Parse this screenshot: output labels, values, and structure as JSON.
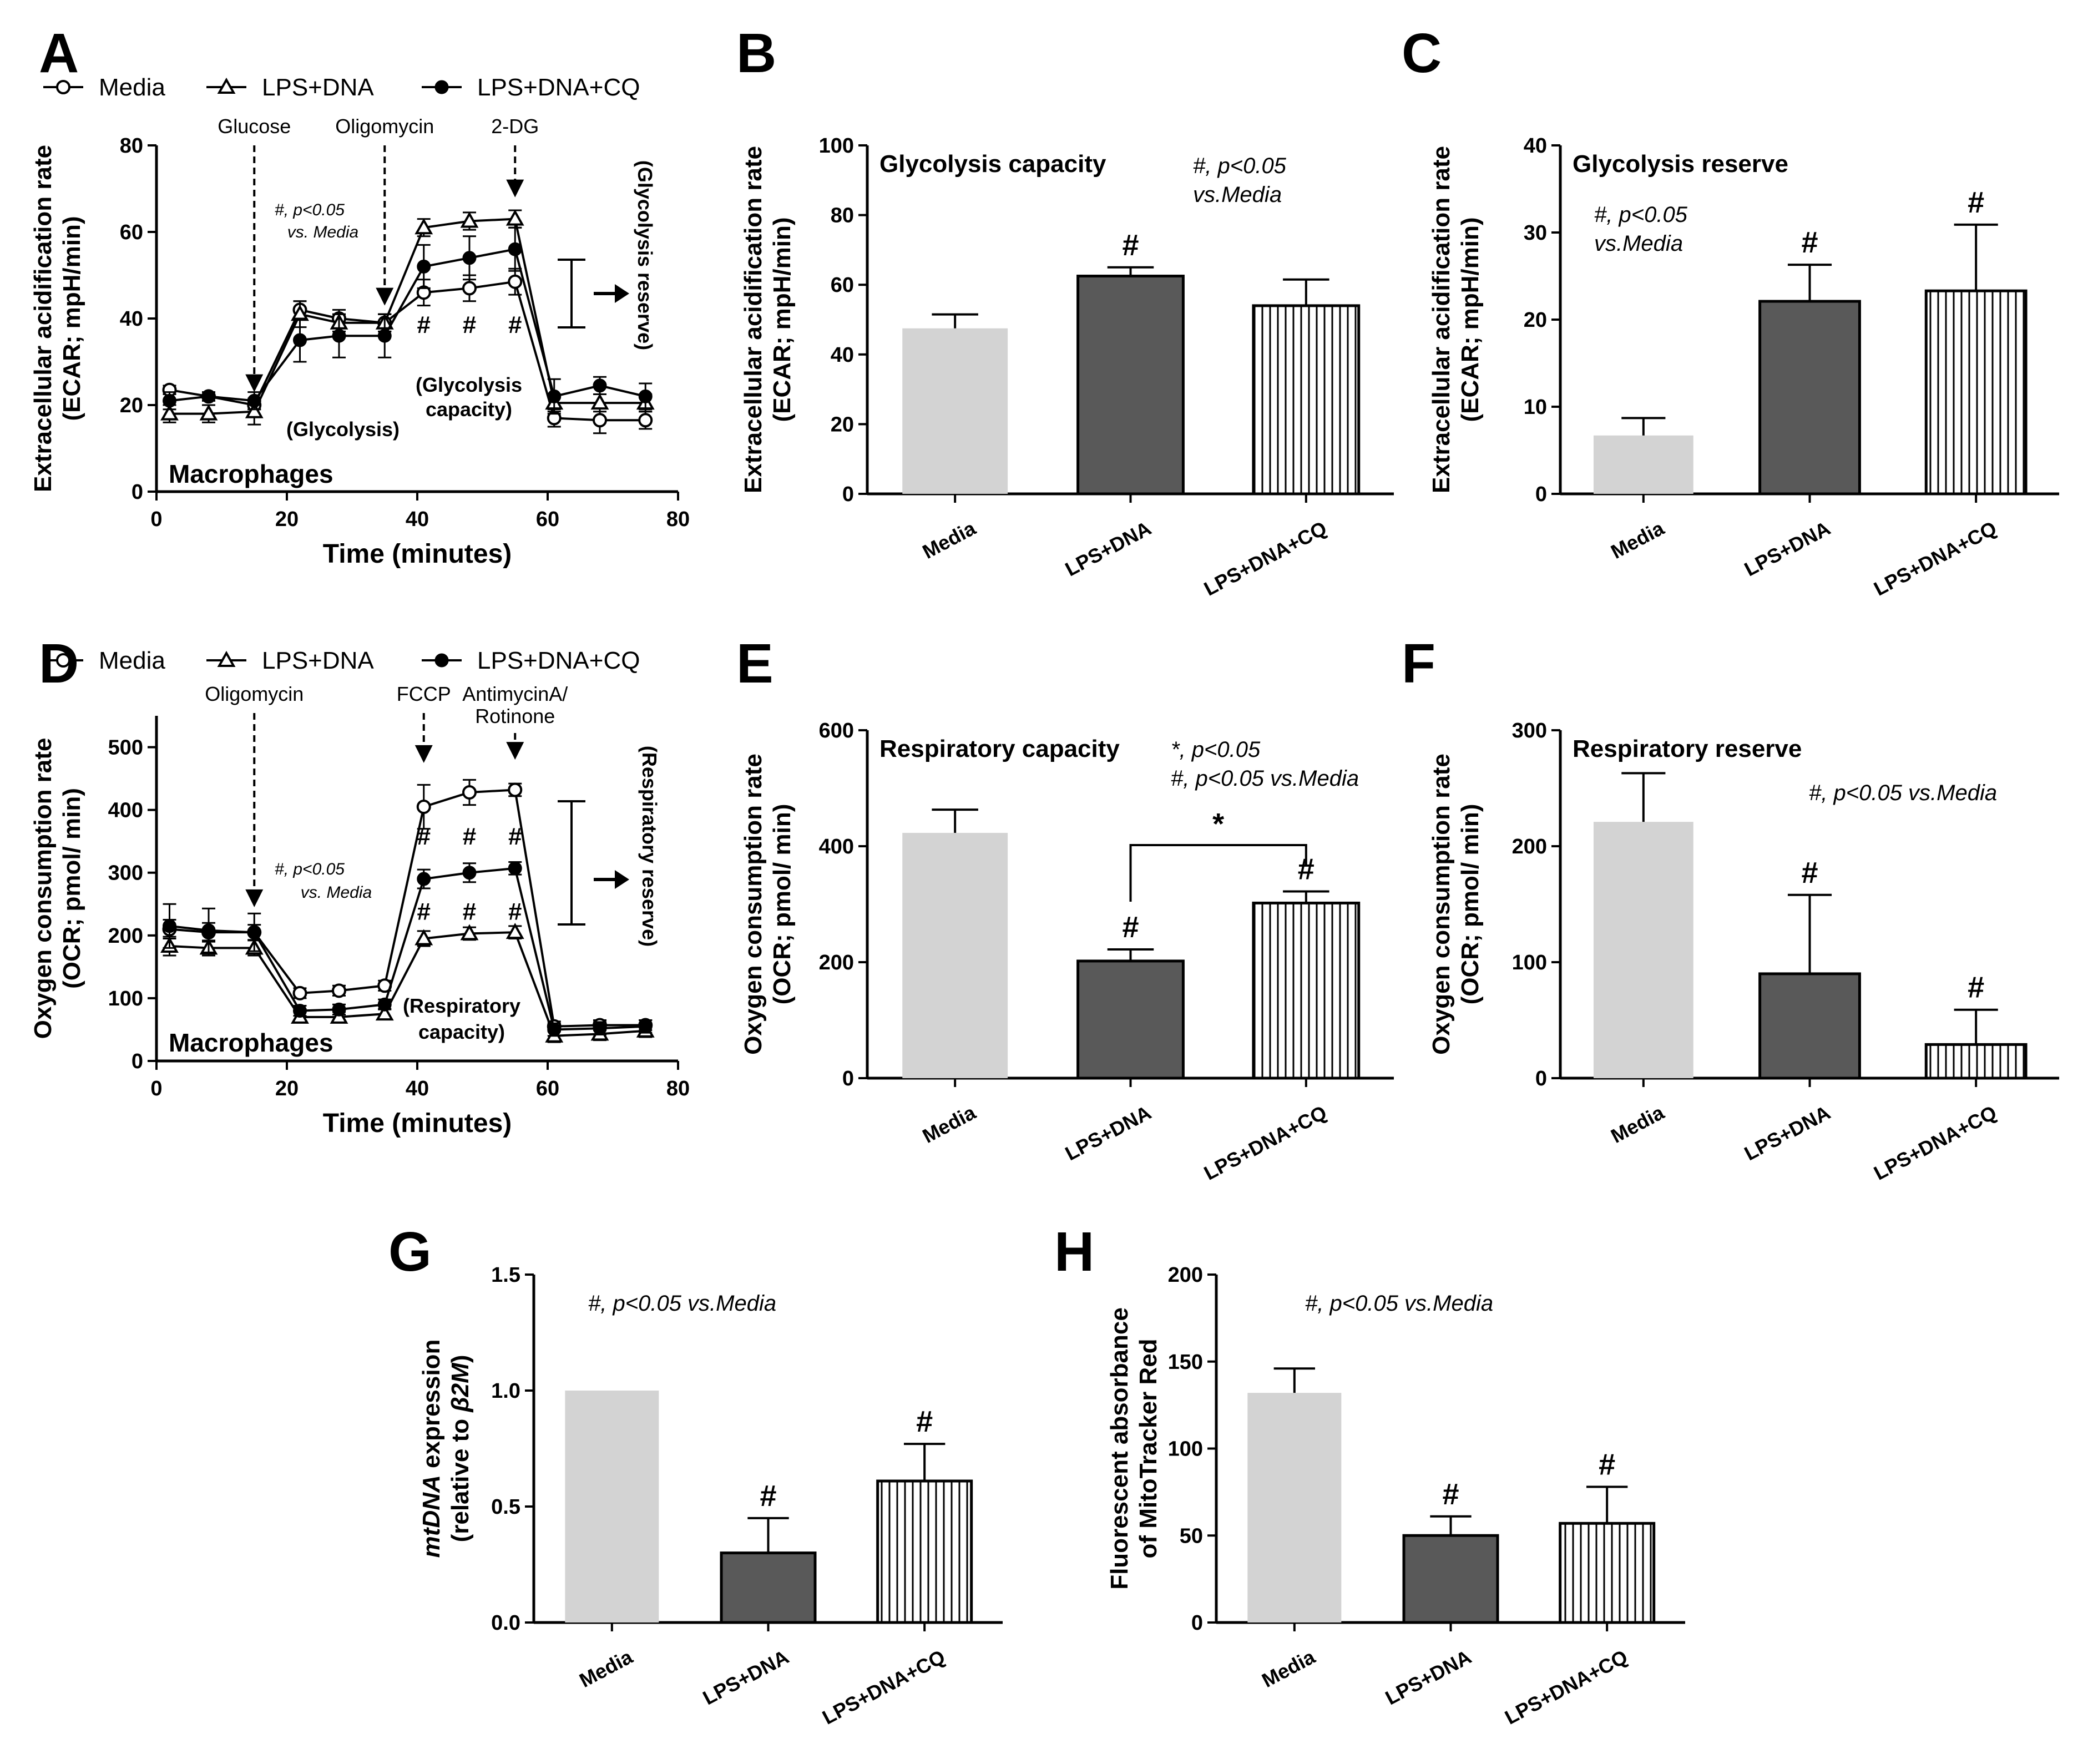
{
  "colors": {
    "media": "#d3d3d3",
    "lps_dna": "#595959",
    "lps_dna_cq": "#ffffff",
    "stroke": "#000000"
  },
  "chart_data": [
    {
      "id": "A",
      "panel_label": "A",
      "type": "line",
      "ylabel": [
        "Extracellular acidification rate",
        "(ECAR; mpH/min)"
      ],
      "xlabel": "Time (minutes)",
      "ylim": [
        0,
        80
      ],
      "yticks": [
        0,
        20,
        40,
        60,
        80
      ],
      "xlim": [
        0,
        80
      ],
      "xticks": [
        0,
        20,
        40,
        60,
        80
      ],
      "legend": [
        {
          "name": "Media",
          "marker": "circle-open"
        },
        {
          "name": "LPS+DNA",
          "marker": "triangle-open"
        },
        {
          "name": "LPS+DNA+CQ",
          "marker": "circle-filled"
        }
      ],
      "x": [
        2,
        8,
        15,
        22,
        28,
        35,
        41,
        48,
        55,
        61,
        68,
        75
      ],
      "series": [
        {
          "name": "Media",
          "marker": "circle-open",
          "values": [
            23.5,
            22,
            20,
            42,
            40,
            39,
            46,
            47,
            48.5,
            17,
            16.5,
            16.5
          ],
          "err": [
            1,
            1,
            1,
            2,
            2,
            2,
            3,
            3,
            3,
            2,
            3,
            2
          ]
        },
        {
          "name": "LPS+DNA",
          "marker": "triangle-open",
          "values": [
            18,
            18,
            18.5,
            41,
            39,
            39,
            61,
            62.5,
            63,
            20.5,
            20.5,
            20.5
          ],
          "err": [
            2,
            2,
            3,
            3,
            2,
            2,
            2,
            2,
            2,
            2,
            2,
            2
          ]
        },
        {
          "name": "LPS+DNA+CQ",
          "marker": "circle-filled",
          "values": [
            21,
            22,
            21,
            35,
            36,
            36,
            52,
            54,
            56,
            22,
            24.5,
            22
          ],
          "err": [
            2,
            1,
            2,
            5,
            5,
            5,
            5,
            5,
            5,
            4,
            2,
            3
          ]
        }
      ],
      "injections": [
        {
          "label": "Glucose",
          "x": 15
        },
        {
          "label": "Oligomycin",
          "x": 35
        },
        {
          "label": "2-DG",
          "x": 55
        }
      ],
      "annotations": {
        "stats": [
          "#, p<0.05",
          "vs. Media"
        ],
        "phase1": "(Glycolysis)",
        "phase2": [
          "(Glycolysis",
          "capacity)"
        ],
        "reserve": "(Glycolysis reserve)",
        "cell": "Macrophages",
        "hash_marks": [
          {
            "x": 41,
            "text": "#"
          },
          {
            "x": 48,
            "text": "#"
          },
          {
            "x": 55,
            "text": "#"
          }
        ]
      }
    },
    {
      "id": "B",
      "panel_label": "B",
      "type": "bar",
      "title": "Glycolysis capacity",
      "note": [
        "#, p<0.05",
        "vs.Media"
      ],
      "ylabel": [
        "Extracellular acidification rate",
        "(ECAR; mpH/min)"
      ],
      "ylim": [
        0,
        100
      ],
      "yticks": [
        0,
        20,
        40,
        60,
        80,
        100
      ],
      "categories": [
        "Media",
        "LPS+DNA",
        "LPS+DNA+CQ"
      ],
      "values": [
        47.5,
        62.5,
        54
      ],
      "err": [
        4,
        2.5,
        7.5
      ],
      "sig": [
        "",
        "#",
        ""
      ]
    },
    {
      "id": "C",
      "panel_label": "C",
      "type": "bar",
      "title": "Glycolysis reserve",
      "note": [
        "#, p<0.05",
        "vs.Media"
      ],
      "ylabel": [
        "Extracellular acidification rate",
        "(ECAR; mpH/min)"
      ],
      "ylim": [
        0,
        40
      ],
      "yticks": [
        0,
        10,
        20,
        30,
        40
      ],
      "categories": [
        "Media",
        "LPS+DNA",
        "LPS+DNA+CQ"
      ],
      "values": [
        6.7,
        22.1,
        23.3
      ],
      "err": [
        2,
        4.2,
        7.6
      ],
      "sig": [
        "",
        "#",
        "#"
      ]
    },
    {
      "id": "D",
      "panel_label": "D",
      "type": "line",
      "ylabel": [
        "Oxygen consumption rate",
        "(OCR; pmol/ min)"
      ],
      "xlabel": "Time (minutes)",
      "ylim": [
        0,
        550
      ],
      "yticks": [
        0,
        100,
        200,
        300,
        400,
        500
      ],
      "xlim": [
        0,
        80
      ],
      "xticks": [
        0,
        20,
        40,
        60,
        80
      ],
      "legend": [
        {
          "name": "Media",
          "marker": "circle-open"
        },
        {
          "name": "LPS+DNA",
          "marker": "triangle-open"
        },
        {
          "name": "LPS+DNA+CQ",
          "marker": "circle-filled"
        }
      ],
      "x": [
        2,
        8,
        15,
        22,
        28,
        35,
        41,
        48,
        55,
        61,
        68,
        75
      ],
      "series": [
        {
          "name": "Media",
          "marker": "circle-open",
          "values": [
            210,
            205,
            205,
            108,
            112,
            120,
            405,
            428,
            432,
            55,
            57,
            57
          ],
          "err": [
            15,
            15,
            12,
            8,
            8,
            8,
            35,
            20,
            10,
            8,
            8,
            8
          ]
        },
        {
          "name": "LPS+DNA",
          "marker": "triangle-open",
          "values": [
            183,
            180,
            180,
            70,
            70,
            75,
            195,
            203,
            205,
            40,
            43,
            48
          ],
          "err": [
            15,
            12,
            12,
            8,
            8,
            8,
            12,
            10,
            10,
            10,
            10,
            10
          ]
        },
        {
          "name": "LPS+DNA+CQ",
          "marker": "circle-filled",
          "values": [
            215,
            208,
            205,
            80,
            82,
            90,
            290,
            300,
            307,
            50,
            52,
            55
          ],
          "err": [
            35,
            35,
            30,
            8,
            8,
            8,
            15,
            15,
            10,
            10,
            10,
            10
          ]
        }
      ],
      "injections": [
        {
          "label": "Oligomycin",
          "x": 15
        },
        {
          "label": "FCCP",
          "x": 41
        },
        {
          "label": "AntimycinA/",
          "label2": "Rotinone",
          "x": 55
        }
      ],
      "annotations": {
        "stats": [
          "#, p<0.05",
          "vs. Media"
        ],
        "phase2": [
          "(Respiratory",
          "capacity)"
        ],
        "reserve": "(Respiratory reserve)",
        "cell": "Macrophages",
        "hash_marks": [
          {
            "x": 41,
            "y": 345,
            "text": "#"
          },
          {
            "x": 48,
            "y": 345,
            "text": "#"
          },
          {
            "x": 55,
            "y": 345,
            "text": "#"
          },
          {
            "x": 41,
            "y": 225,
            "text": "#"
          },
          {
            "x": 48,
            "y": 225,
            "text": "#"
          },
          {
            "x": 55,
            "y": 225,
            "text": "#"
          }
        ]
      }
    },
    {
      "id": "E",
      "panel_label": "E",
      "type": "bar",
      "title": "Respiratory capacity",
      "note": [
        "*, p<0.05",
        "#, p<0.05 vs.Media"
      ],
      "ylabel": [
        "Oxygen consumption rate",
        "(OCR; pmol/ min)"
      ],
      "ylim": [
        0,
        600
      ],
      "yticks": [
        0,
        200,
        400,
        600
      ],
      "categories": [
        "Media",
        "LPS+DNA",
        "LPS+DNA+CQ"
      ],
      "values": [
        423,
        202,
        302
      ],
      "err": [
        40,
        20,
        20
      ],
      "sig": [
        "",
        "#",
        "#"
      ],
      "bracket": {
        "from": 1,
        "to": 2,
        "label": "*"
      }
    },
    {
      "id": "F",
      "panel_label": "F",
      "type": "bar",
      "title": "Respiratory reserve",
      "note": [
        "#, p<0.05 vs.Media"
      ],
      "ylabel": [
        "Oxygen consumption rate",
        "(OCR; pmol/ min)"
      ],
      "ylim": [
        0,
        300
      ],
      "yticks": [
        0,
        100,
        200,
        300
      ],
      "categories": [
        "Media",
        "LPS+DNA",
        "LPS+DNA+CQ"
      ],
      "values": [
        221,
        90,
        29
      ],
      "err": [
        42,
        68,
        30
      ],
      "sig": [
        "",
        "#",
        "#"
      ]
    },
    {
      "id": "G",
      "panel_label": "G",
      "type": "bar",
      "note": [
        "#, p<0.05 vs.Media"
      ],
      "ylabel": [
        "mtDNA expression",
        "(relative to β2M)"
      ],
      "ylim": [
        0,
        1.5
      ],
      "yticks": [
        "0.0",
        "0.5",
        "1.0",
        "1.5"
      ],
      "categories": [
        "Media",
        "LPS+DNA",
        "LPS+DNA+CQ"
      ],
      "values": [
        1.0,
        0.3,
        0.61
      ],
      "err": [
        0,
        0.15,
        0.16
      ],
      "sig": [
        "",
        "#",
        "#"
      ]
    },
    {
      "id": "H",
      "panel_label": "H",
      "type": "bar",
      "note": [
        "#, p<0.05 vs.Media"
      ],
      "ylabel": [
        "Fluorescent absorbance",
        "of MitoTracker Red"
      ],
      "ylim": [
        0,
        200
      ],
      "yticks": [
        0,
        50,
        100,
        150,
        200
      ],
      "categories": [
        "Media",
        "LPS+DNA",
        "LPS+DNA+CQ"
      ],
      "values": [
        132,
        50,
        57
      ],
      "err": [
        14,
        11,
        21
      ],
      "sig": [
        "",
        "#",
        "#"
      ]
    }
  ]
}
